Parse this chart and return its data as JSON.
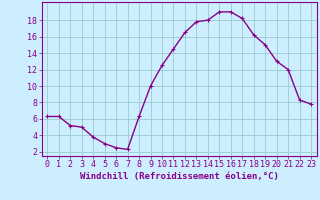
{
  "x": [
    0,
    1,
    2,
    3,
    4,
    5,
    6,
    7,
    8,
    9,
    10,
    11,
    12,
    13,
    14,
    15,
    16,
    17,
    18,
    19,
    20,
    21,
    22,
    23
  ],
  "y": [
    6.3,
    6.3,
    5.2,
    5.0,
    3.8,
    3.0,
    2.5,
    2.3,
    6.3,
    10.0,
    12.5,
    14.5,
    16.5,
    17.8,
    18.0,
    19.0,
    19.0,
    18.2,
    16.2,
    15.0,
    13.0,
    12.0,
    8.3,
    7.8
  ],
  "line_color": "#880088",
  "marker": "+",
  "markersize": 3,
  "linewidth": 1.0,
  "background_color": "#cceeff",
  "grid_color": "#99cccc",
  "xlabel": "Windchill (Refroidissement éolien,°C)",
  "xlabel_fontsize": 6.5,
  "xtick_labels": [
    "0",
    "1",
    "2",
    "3",
    "4",
    "5",
    "6",
    "7",
    "8",
    "9",
    "10",
    "11",
    "12",
    "13",
    "14",
    "15",
    "16",
    "17",
    "18",
    "19",
    "20",
    "21",
    "22",
    "23"
  ],
  "ytick_values": [
    2,
    4,
    6,
    8,
    10,
    12,
    14,
    16,
    18
  ],
  "ylim": [
    1.5,
    20.2
  ],
  "xlim": [
    -0.5,
    23.5
  ],
  "tick_color": "#880088",
  "tick_fontsize": 6,
  "axis_color": "#880088"
}
